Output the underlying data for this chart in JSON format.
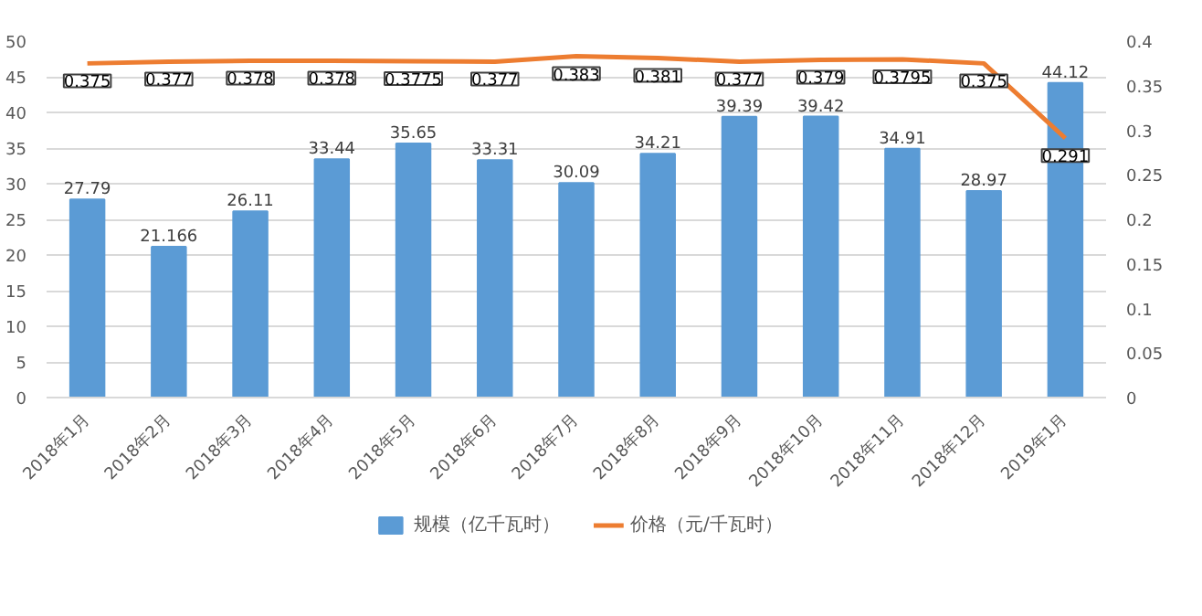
{
  "chart_data": {
    "type": "bar",
    "categories": [
      "2018年1月",
      "2018年2月",
      "2018年3月",
      "2018年4月",
      "2018年5月",
      "2018年6月",
      "2018年7月",
      "2018年8月",
      "2018年9月",
      "2018年10月",
      "2018年11月",
      "2018年12月",
      "2019年1月"
    ],
    "series": [
      {
        "name": "规模（亿千瓦时）",
        "color": "#5b9bd5",
        "values": [
          27.79,
          21.166,
          26.11,
          33.44,
          35.65,
          33.31,
          30.09,
          34.21,
          39.39,
          39.42,
          34.91,
          28.97,
          44.12
        ]
      },
      {
        "name": "价格（元/千瓦时）",
        "type": "line",
        "axis": "y2",
        "color": "#ed7d31",
        "values": [
          0.375,
          0.377,
          0.378,
          0.378,
          0.3775,
          0.377,
          0.383,
          0.381,
          0.377,
          0.379,
          0.3795,
          0.375,
          0.291
        ]
      }
    ],
    "ylim": [
      0,
      50
    ],
    "yticks": [
      0,
      5,
      10,
      15,
      20,
      25,
      30,
      35,
      40,
      45,
      50
    ],
    "y2lim": [
      0,
      0.4
    ],
    "y2ticks": [
      0,
      0.05,
      0.1,
      0.15,
      0.2,
      0.25,
      0.3,
      0.35,
      0.4
    ],
    "grid": "y",
    "legend": "bottom",
    "data_labels": true,
    "marker": "none"
  }
}
